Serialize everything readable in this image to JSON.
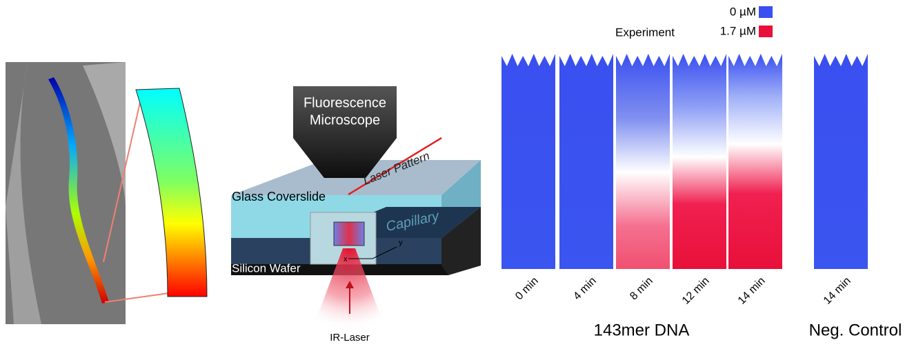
{
  "setup": {
    "microscope": [
      "Fluorescence",
      "Microscope"
    ],
    "laser_pattern": "Laser Pattern",
    "glass": "Glass Coverslide",
    "capillary": "Capillary",
    "wafer": "Silicon Wafer",
    "axis_x": "x",
    "axis_y": "y",
    "laser": "IR-Laser"
  },
  "experiment": {
    "title": "Experiment",
    "legend": [
      "0 µM",
      "1.7 µM"
    ],
    "panels": [
      "0 min",
      "4 min",
      "8 min",
      "12 min",
      "14 min",
      "14 min"
    ],
    "groups": [
      "143mer DNA",
      "Neg. Control"
    ]
  }
}
